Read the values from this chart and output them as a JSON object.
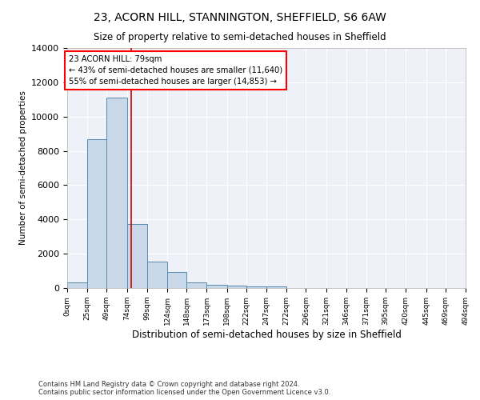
{
  "title": "23, ACORN HILL, STANNINGTON, SHEFFIELD, S6 6AW",
  "subtitle": "Size of property relative to semi-detached houses in Sheffield",
  "xlabel": "Distribution of semi-detached houses by size in Sheffield",
  "ylabel": "Number of semi-detached properties",
  "bar_color": "#c8d8e8",
  "bar_edge_color": "#5a8ab0",
  "background_color": "#eef2f8",
  "grid_color": "#ffffff",
  "annotation_line1": "23 ACORN HILL: 79sqm",
  "annotation_line2": "← 43% of semi-detached houses are smaller (11,640)",
  "annotation_line3": "55% of semi-detached houses are larger (14,853) →",
  "property_size": 79,
  "vline_color": "#cc0000",
  "vline_x": 79,
  "bin_edges": [
    0,
    25,
    49,
    74,
    99,
    124,
    148,
    173,
    198,
    222,
    247,
    272,
    296,
    321,
    346,
    371,
    395,
    420,
    445,
    469,
    494
  ],
  "bin_labels": [
    "0sqm",
    "25sqm",
    "49sqm",
    "74sqm",
    "99sqm",
    "124sqm",
    "148sqm",
    "173sqm",
    "198sqm",
    "222sqm",
    "247sqm",
    "272sqm",
    "296sqm",
    "321sqm",
    "346sqm",
    "371sqm",
    "395sqm",
    "420sqm",
    "445sqm",
    "469sqm",
    "494sqm"
  ],
  "bar_heights": [
    320,
    8700,
    11100,
    3750,
    1550,
    950,
    350,
    210,
    150,
    100,
    105,
    0,
    0,
    0,
    0,
    0,
    0,
    0,
    0,
    0
  ],
  "ylim": [
    0,
    14000
  ],
  "yticks": [
    0,
    2000,
    4000,
    6000,
    8000,
    10000,
    12000,
    14000
  ],
  "footer_text": "Contains HM Land Registry data © Crown copyright and database right 2024.\nContains public sector information licensed under the Open Government Licence v3.0.",
  "figsize": [
    6.0,
    5.0
  ],
  "dpi": 100
}
